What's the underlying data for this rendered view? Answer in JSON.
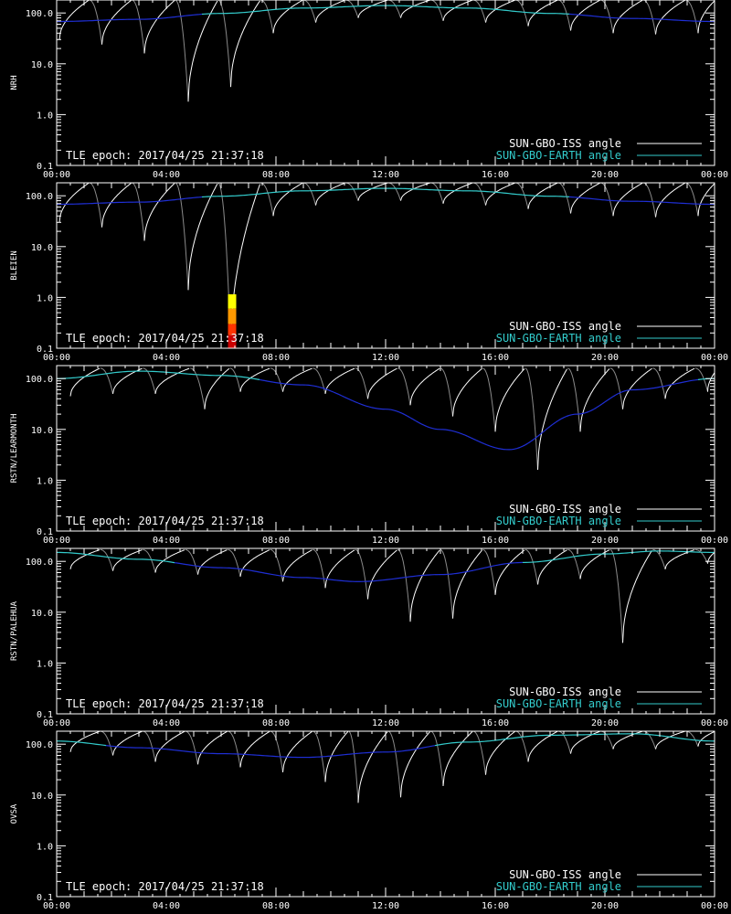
{
  "colors": {
    "background": "#000000",
    "axes": "#ffffff",
    "iss_curve": "#ffffff",
    "iss_curve_dim": "#8a8a8a",
    "earth_curve": "#33cccc",
    "earth_curve_dark": "#1f2fd6",
    "flare_colors": [
      "#ffff00",
      "#ff9900",
      "#ff3300",
      "#cc0000"
    ]
  },
  "chart_data": [
    {
      "type": "line",
      "ylabel": "NRH",
      "yscale": "log",
      "ylim": [
        0.1,
        180
      ],
      "yticks": [
        "0.1",
        "1.0",
        "10.0",
        "100.0"
      ],
      "xlim_hours": [
        0,
        24
      ],
      "xticks": [
        "00:00",
        "04:00",
        "08:00",
        "12:00",
        "16:00",
        "20:00",
        "00:00"
      ],
      "annotation": "TLE epoch: 2017/04/25 21:37:18",
      "legend": {
        "position": "bottom-right",
        "entries": [
          "SUN-GBO-ISS angle",
          "SUN-GBO-EARTH angle"
        ]
      },
      "earth_curve": {
        "x": [
          0,
          3,
          6,
          9,
          12,
          15,
          18,
          21,
          24
        ],
        "y": [
          68,
          75,
          98,
          125,
          140,
          125,
          98,
          78,
          68
        ]
      },
      "iss_dips": [
        {
          "t": 0.1,
          "min": 30
        },
        {
          "t": 1.65,
          "min": 24
        },
        {
          "t": 3.2,
          "min": 16
        },
        {
          "t": 4.8,
          "min": 1.8
        },
        {
          "t": 6.35,
          "min": 3.5
        },
        {
          "t": 7.9,
          "min": 40
        },
        {
          "t": 9.45,
          "min": 65
        },
        {
          "t": 11.0,
          "min": 80
        },
        {
          "t": 12.55,
          "min": 80
        },
        {
          "t": 14.1,
          "min": 70
        },
        {
          "t": 15.65,
          "min": 65
        },
        {
          "t": 17.2,
          "min": 55
        },
        {
          "t": 18.75,
          "min": 45
        },
        {
          "t": 20.3,
          "min": 40
        },
        {
          "t": 21.85,
          "min": 38
        },
        {
          "t": 23.4,
          "min": 40
        }
      ],
      "iss_peak": 180,
      "flare": null
    },
    {
      "type": "line",
      "ylabel": "BLEIEN",
      "yscale": "log",
      "ylim": [
        0.1,
        180
      ],
      "yticks": [
        "0.1",
        "1.0",
        "10.0",
        "100.0"
      ],
      "xlim_hours": [
        0,
        24
      ],
      "xticks": [
        "00:00",
        "04:00",
        "08:00",
        "12:00",
        "16:00",
        "20:00",
        "00:00"
      ],
      "annotation": "TLE epoch: 2017/04/25 21:37:18",
      "legend": {
        "position": "bottom-right",
        "entries": [
          "SUN-GBO-ISS angle",
          "SUN-GBO-EARTH angle"
        ]
      },
      "earth_curve": {
        "x": [
          0,
          3,
          6,
          9,
          12,
          15,
          18,
          21,
          24
        ],
        "y": [
          68,
          75,
          98,
          125,
          140,
          125,
          98,
          78,
          68
        ]
      },
      "iss_dips": [
        {
          "t": 0.1,
          "min": 30
        },
        {
          "t": 1.65,
          "min": 24
        },
        {
          "t": 3.2,
          "min": 13
        },
        {
          "t": 4.8,
          "min": 1.4
        },
        {
          "t": 6.35,
          "min": 0.1
        },
        {
          "t": 7.9,
          "min": 40
        },
        {
          "t": 9.45,
          "min": 65
        },
        {
          "t": 11.0,
          "min": 80
        },
        {
          "t": 12.55,
          "min": 80
        },
        {
          "t": 14.1,
          "min": 70
        },
        {
          "t": 15.65,
          "min": 65
        },
        {
          "t": 17.2,
          "min": 55
        },
        {
          "t": 18.75,
          "min": 45
        },
        {
          "t": 20.3,
          "min": 40
        },
        {
          "t": 21.85,
          "min": 38
        },
        {
          "t": 23.4,
          "min": 40
        }
      ],
      "iss_peak": 180,
      "flare": {
        "t_start": 6.25,
        "t_end": 6.55,
        "levels": [
          1.15,
          0.6,
          0.3,
          0.18,
          0.1
        ]
      }
    },
    {
      "type": "line",
      "ylabel": "RSTN/LEARMONTH",
      "yscale": "log",
      "ylim": [
        0.1,
        180
      ],
      "yticks": [
        "0.1",
        "1.0",
        "10.0",
        "100.0"
      ],
      "xlim_hours": [
        0,
        24
      ],
      "xticks": [
        "00:00",
        "04:00",
        "08:00",
        "12:00",
        "16:00",
        "20:00",
        "00:00"
      ],
      "annotation": "TLE epoch: 2017/04/25 21:37:18",
      "legend": {
        "position": "bottom-right",
        "entries": [
          "SUN-GBO-ISS angle",
          "SUN-GBO-EARTH angle"
        ]
      },
      "earth_curve": {
        "x": [
          0,
          3,
          6,
          9,
          12,
          14,
          16.5,
          19,
          21,
          24
        ],
        "y": [
          100,
          140,
          115,
          75,
          25,
          10,
          4,
          20,
          60,
          100
        ]
      },
      "iss_dips": [
        {
          "t": 0.5,
          "min": 45
        },
        {
          "t": 2.05,
          "min": 50
        },
        {
          "t": 3.6,
          "min": 50
        },
        {
          "t": 5.4,
          "min": 25
        },
        {
          "t": 6.7,
          "min": 55
        },
        {
          "t": 8.25,
          "min": 55
        },
        {
          "t": 9.8,
          "min": 50
        },
        {
          "t": 11.35,
          "min": 40
        },
        {
          "t": 12.9,
          "min": 30
        },
        {
          "t": 14.45,
          "min": 18
        },
        {
          "t": 16.0,
          "min": 9
        },
        {
          "t": 17.55,
          "min": 1.6
        },
        {
          "t": 19.1,
          "min": 9
        },
        {
          "t": 20.65,
          "min": 25
        },
        {
          "t": 22.2,
          "min": 40
        },
        {
          "t": 23.75,
          "min": 55
        }
      ],
      "iss_peak": 160,
      "flare": null
    },
    {
      "type": "line",
      "ylabel": "RSTN/PALEHUA",
      "yscale": "log",
      "ylim": [
        0.1,
        180
      ],
      "yticks": [
        "0.1",
        "1.0",
        "10.0",
        "100.0"
      ],
      "xlim_hours": [
        0,
        24
      ],
      "xticks": [
        "00:00",
        "04:00",
        "08:00",
        "12:00",
        "16:00",
        "20:00",
        "00:00"
      ],
      "annotation": "TLE epoch: 2017/04/25 21:37:18",
      "legend": {
        "position": "bottom-right",
        "entries": [
          "SUN-GBO-ISS angle",
          "SUN-GBO-EARTH angle"
        ]
      },
      "earth_curve": {
        "x": [
          0,
          3,
          6,
          9,
          11,
          14,
          17,
          20,
          22,
          24
        ],
        "y": [
          150,
          110,
          75,
          48,
          40,
          55,
          95,
          140,
          160,
          150
        ]
      },
      "iss_dips": [
        {
          "t": 0.5,
          "min": 70
        },
        {
          "t": 2.05,
          "min": 65
        },
        {
          "t": 3.6,
          "min": 60
        },
        {
          "t": 5.15,
          "min": 55
        },
        {
          "t": 6.7,
          "min": 50
        },
        {
          "t": 8.25,
          "min": 40
        },
        {
          "t": 9.8,
          "min": 30
        },
        {
          "t": 11.35,
          "min": 18
        },
        {
          "t": 12.9,
          "min": 6.5
        },
        {
          "t": 14.45,
          "min": 7.5
        },
        {
          "t": 16.0,
          "min": 22
        },
        {
          "t": 17.55,
          "min": 35
        },
        {
          "t": 19.1,
          "min": 45
        },
        {
          "t": 20.65,
          "min": 2.5
        },
        {
          "t": 22.2,
          "min": 70
        },
        {
          "t": 23.75,
          "min": 90
        }
      ],
      "iss_peak": 170,
      "flare": null
    },
    {
      "type": "line",
      "ylabel": "OVSA",
      "yscale": "log",
      "ylim": [
        0.1,
        180
      ],
      "yticks": [
        "0.1",
        "1.0",
        "10.0",
        "100.0"
      ],
      "xlim_hours": [
        0,
        24
      ],
      "xticks": [
        "00:00",
        "04:00",
        "08:00",
        "12:00",
        "16:00",
        "20:00",
        "00:00"
      ],
      "annotation": "TLE epoch: 2017/04/25 21:37:18",
      "legend": {
        "position": "bottom-right",
        "entries": [
          "SUN-GBO-ISS angle",
          "SUN-GBO-EARTH angle"
        ]
      },
      "earth_curve": {
        "x": [
          0,
          3,
          6,
          9,
          12,
          15,
          18,
          21,
          24
        ],
        "y": [
          115,
          85,
          65,
          55,
          70,
          110,
          150,
          160,
          115
        ]
      },
      "iss_dips": [
        {
          "t": 0.5,
          "min": 70
        },
        {
          "t": 2.05,
          "min": 60
        },
        {
          "t": 3.6,
          "min": 45
        },
        {
          "t": 5.15,
          "min": 40
        },
        {
          "t": 6.7,
          "min": 35
        },
        {
          "t": 8.25,
          "min": 28
        },
        {
          "t": 9.8,
          "min": 18
        },
        {
          "t": 11.0,
          "min": 7
        },
        {
          "t": 12.55,
          "min": 9
        },
        {
          "t": 14.1,
          "min": 15
        },
        {
          "t": 15.65,
          "min": 25
        },
        {
          "t": 17.2,
          "min": 45
        },
        {
          "t": 18.75,
          "min": 65
        },
        {
          "t": 20.3,
          "min": 80
        },
        {
          "t": 21.85,
          "min": 80
        },
        {
          "t": 23.4,
          "min": 90
        }
      ],
      "iss_peak": 180,
      "flare": null
    }
  ]
}
